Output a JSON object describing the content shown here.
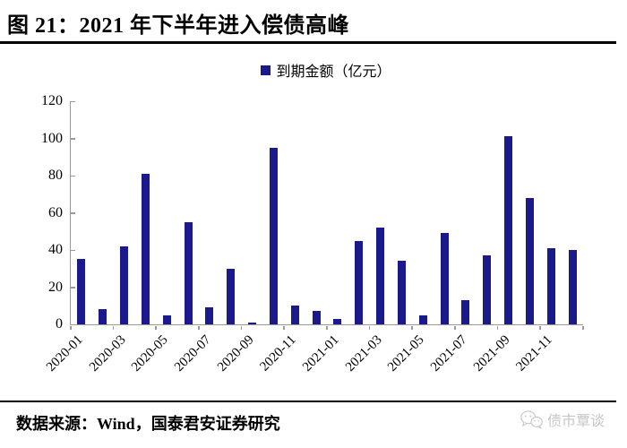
{
  "header": {
    "title": "图 21：2021 年下半年进入偿债高峰"
  },
  "legend": {
    "label": "到期金额（亿元）"
  },
  "footer": {
    "source": "数据来源：Wind，国泰君安证券研究",
    "watermark": "债市覃谈",
    "watermark_icon": "wechat-icon"
  },
  "colors": {
    "bar": "#1A1A8C",
    "axis": "#9a9a9a",
    "text": "#000000",
    "watermark": "#c6c6c6",
    "background": "#ffffff"
  },
  "chart_data": {
    "type": "bar",
    "title": "",
    "xlabel": "",
    "ylabel": "",
    "legend_entries": [
      "到期金额（亿元）"
    ],
    "legend_position": "top-center",
    "grid": false,
    "ylim": [
      0,
      120
    ],
    "y_ticks": [
      0,
      20,
      40,
      60,
      80,
      100,
      120
    ],
    "categories": [
      "2020-01",
      "2020-02",
      "2020-03",
      "2020-04",
      "2020-05",
      "2020-06",
      "2020-07",
      "2020-08",
      "2020-09",
      "2020-10",
      "2020-11",
      "2020-12",
      "2021-01",
      "2021-02",
      "2021-03",
      "2021-04",
      "2021-05",
      "2021-06",
      "2021-07",
      "2021-08",
      "2021-09",
      "2021-10",
      "2021-11",
      "2021-12"
    ],
    "values": [
      35,
      8,
      42,
      81,
      5,
      55,
      9,
      30,
      1,
      95,
      10,
      7,
      3,
      45,
      52,
      34,
      5,
      49,
      13,
      37,
      101,
      68,
      41,
      40
    ],
    "x_tick_labels": [
      "2020-01",
      "2020-03",
      "2020-05",
      "2020-07",
      "2020-09",
      "2020-11",
      "2021-01",
      "2021-03",
      "2021-05",
      "2021-07",
      "2021-09",
      "2021-11"
    ]
  }
}
